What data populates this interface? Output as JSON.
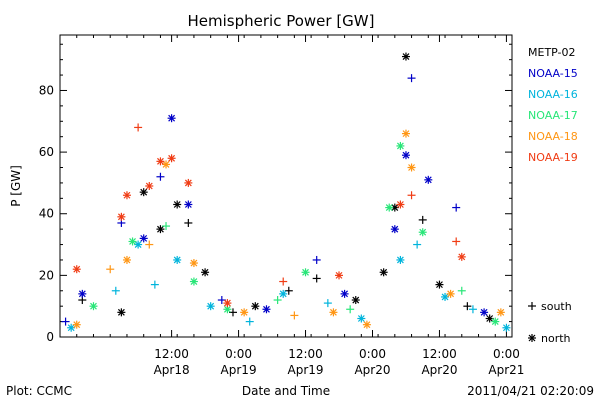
{
  "chart_data": {
    "type": "scatter",
    "title": "Hemispheric Power [GW]",
    "xlabel": "Date and Time",
    "ylabel": "P [GW]",
    "xlim": [
      "2011-04-17T16:00",
      "2011-04-21T01:00"
    ],
    "ylim": [
      0,
      98
    ],
    "y_ticks": [
      0,
      20,
      40,
      60,
      80
    ],
    "x_ticks": [
      {
        "t": "2011-04-18T12:00",
        "time": "12:00",
        "date": "Apr18"
      },
      {
        "t": "2011-04-19T00:00",
        "time": "0:00",
        "date": "Apr19"
      },
      {
        "t": "2011-04-19T12:00",
        "time": "12:00",
        "date": "Apr19"
      },
      {
        "t": "2011-04-20T00:00",
        "time": "0:00",
        "date": "Apr20"
      },
      {
        "t": "2011-04-20T12:00",
        "time": "12:00",
        "date": "Apr20"
      },
      {
        "t": "2011-04-21T00:00",
        "time": "0:00",
        "date": "Apr21"
      }
    ],
    "grid": false,
    "legend_position": "right",
    "marker_legend": {
      "south": "south",
      "north": "north"
    },
    "series": [
      {
        "name": "METP-02",
        "color": "#000000",
        "points": [
          {
            "t": "2011-04-17T20:00",
            "v": 12,
            "h": "south"
          },
          {
            "t": "2011-04-18T03:00",
            "v": 8,
            "h": "north"
          },
          {
            "t": "2011-04-18T07:00",
            "v": 47,
            "h": "north"
          },
          {
            "t": "2011-04-18T10:00",
            "v": 35,
            "h": "north"
          },
          {
            "t": "2011-04-18T13:00",
            "v": 43,
            "h": "north"
          },
          {
            "t": "2011-04-18T15:00",
            "v": 37,
            "h": "south"
          },
          {
            "t": "2011-04-18T18:00",
            "v": 21,
            "h": "north"
          },
          {
            "t": "2011-04-18T23:00",
            "v": 8,
            "h": "south"
          },
          {
            "t": "2011-04-19T03:00",
            "v": 10,
            "h": "north"
          },
          {
            "t": "2011-04-19T09:00",
            "v": 15,
            "h": "south"
          },
          {
            "t": "2011-04-19T14:00",
            "v": 19,
            "h": "south"
          },
          {
            "t": "2011-04-19T21:00",
            "v": 12,
            "h": "north"
          },
          {
            "t": "2011-04-20T02:00",
            "v": 21,
            "h": "north"
          },
          {
            "t": "2011-04-20T04:00",
            "v": 42,
            "h": "north"
          },
          {
            "t": "2011-04-20T06:00",
            "v": 91,
            "h": "north"
          },
          {
            "t": "2011-04-20T09:00",
            "v": 38,
            "h": "south"
          },
          {
            "t": "2011-04-20T12:00",
            "v": 17,
            "h": "north"
          },
          {
            "t": "2011-04-20T17:00",
            "v": 10,
            "h": "south"
          },
          {
            "t": "2011-04-20T21:00",
            "v": 6,
            "h": "north"
          }
        ]
      },
      {
        "name": "NOAA-15",
        "color": "#0000c8",
        "points": [
          {
            "t": "2011-04-17T17:00",
            "v": 5,
            "h": "south"
          },
          {
            "t": "2011-04-17T20:00",
            "v": 14,
            "h": "north"
          },
          {
            "t": "2011-04-18T03:00",
            "v": 37,
            "h": "south"
          },
          {
            "t": "2011-04-18T07:00",
            "v": 32,
            "h": "north"
          },
          {
            "t": "2011-04-18T10:00",
            "v": 52,
            "h": "south"
          },
          {
            "t": "2011-04-18T12:00",
            "v": 71,
            "h": "north"
          },
          {
            "t": "2011-04-18T15:00",
            "v": 43,
            "h": "north"
          },
          {
            "t": "2011-04-18T21:00",
            "v": 12,
            "h": "south"
          },
          {
            "t": "2011-04-19T05:00",
            "v": 9,
            "h": "north"
          },
          {
            "t": "2011-04-19T14:00",
            "v": 25,
            "h": "south"
          },
          {
            "t": "2011-04-19T19:00",
            "v": 14,
            "h": "north"
          },
          {
            "t": "2011-04-20T04:00",
            "v": 35,
            "h": "north"
          },
          {
            "t": "2011-04-20T06:00",
            "v": 59,
            "h": "north"
          },
          {
            "t": "2011-04-20T07:00",
            "v": 84,
            "h": "south"
          },
          {
            "t": "2011-04-20T10:00",
            "v": 51,
            "h": "north"
          },
          {
            "t": "2011-04-20T15:00",
            "v": 42,
            "h": "south"
          },
          {
            "t": "2011-04-20T20:00",
            "v": 8,
            "h": "north"
          }
        ]
      },
      {
        "name": "NOAA-16",
        "color": "#00b4dc",
        "points": [
          {
            "t": "2011-04-17T18:00",
            "v": 3,
            "h": "north"
          },
          {
            "t": "2011-04-18T02:00",
            "v": 15,
            "h": "south"
          },
          {
            "t": "2011-04-18T06:00",
            "v": 30,
            "h": "north"
          },
          {
            "t": "2011-04-18T09:00",
            "v": 17,
            "h": "south"
          },
          {
            "t": "2011-04-18T13:00",
            "v": 25,
            "h": "north"
          },
          {
            "t": "2011-04-18T19:00",
            "v": 10,
            "h": "north"
          },
          {
            "t": "2011-04-19T02:00",
            "v": 5,
            "h": "south"
          },
          {
            "t": "2011-04-19T08:00",
            "v": 14,
            "h": "north"
          },
          {
            "t": "2011-04-19T16:00",
            "v": 11,
            "h": "south"
          },
          {
            "t": "2011-04-19T22:00",
            "v": 6,
            "h": "north"
          },
          {
            "t": "2011-04-20T05:00",
            "v": 25,
            "h": "north"
          },
          {
            "t": "2011-04-20T08:00",
            "v": 30,
            "h": "south"
          },
          {
            "t": "2011-04-20T13:00",
            "v": 13,
            "h": "north"
          },
          {
            "t": "2011-04-20T18:00",
            "v": 9,
            "h": "south"
          },
          {
            "t": "2011-04-21T00:00",
            "v": 3,
            "h": "north"
          }
        ]
      },
      {
        "name": "NOAA-17",
        "color": "#28e678",
        "points": [
          {
            "t": "2011-04-17T22:00",
            "v": 10,
            "h": "north"
          },
          {
            "t": "2011-04-18T05:00",
            "v": 31,
            "h": "north"
          },
          {
            "t": "2011-04-18T11:00",
            "v": 36,
            "h": "south"
          },
          {
            "t": "2011-04-18T16:00",
            "v": 18,
            "h": "north"
          },
          {
            "t": "2011-04-18T22:00",
            "v": 9,
            "h": "north"
          },
          {
            "t": "2011-04-19T07:00",
            "v": 12,
            "h": "south"
          },
          {
            "t": "2011-04-19T12:00",
            "v": 21,
            "h": "north"
          },
          {
            "t": "2011-04-19T20:00",
            "v": 9,
            "h": "south"
          },
          {
            "t": "2011-04-20T03:00",
            "v": 42,
            "h": "north"
          },
          {
            "t": "2011-04-20T05:00",
            "v": 62,
            "h": "north"
          },
          {
            "t": "2011-04-20T09:00",
            "v": 34,
            "h": "north"
          },
          {
            "t": "2011-04-20T16:00",
            "v": 15,
            "h": "south"
          },
          {
            "t": "2011-04-20T22:00",
            "v": 5,
            "h": "north"
          }
        ]
      },
      {
        "name": "NOAA-18",
        "color": "#ff9614",
        "points": [
          {
            "t": "2011-04-17T19:00",
            "v": 4,
            "h": "north"
          },
          {
            "t": "2011-04-18T01:00",
            "v": 22,
            "h": "south"
          },
          {
            "t": "2011-04-18T04:00",
            "v": 25,
            "h": "north"
          },
          {
            "t": "2011-04-18T08:00",
            "v": 30,
            "h": "south"
          },
          {
            "t": "2011-04-18T11:00",
            "v": 56,
            "h": "north"
          },
          {
            "t": "2011-04-18T16:00",
            "v": 24,
            "h": "north"
          },
          {
            "t": "2011-04-19T01:00",
            "v": 8,
            "h": "north"
          },
          {
            "t": "2011-04-19T10:00",
            "v": 7,
            "h": "south"
          },
          {
            "t": "2011-04-19T17:00",
            "v": 8,
            "h": "north"
          },
          {
            "t": "2011-04-19T23:00",
            "v": 4,
            "h": "north"
          },
          {
            "t": "2011-04-20T06:00",
            "v": 66,
            "h": "north"
          },
          {
            "t": "2011-04-20T07:00",
            "v": 55,
            "h": "north"
          },
          {
            "t": "2011-04-20T14:00",
            "v": 14,
            "h": "north"
          },
          {
            "t": "2011-04-20T23:00",
            "v": 8,
            "h": "north"
          }
        ]
      },
      {
        "name": "NOAA-19",
        "color": "#f03c14",
        "points": [
          {
            "t": "2011-04-17T19:00",
            "v": 22,
            "h": "north"
          },
          {
            "t": "2011-04-18T03:00",
            "v": 39,
            "h": "north"
          },
          {
            "t": "2011-04-18T04:00",
            "v": 46,
            "h": "north"
          },
          {
            "t": "2011-04-18T06:00",
            "v": 68,
            "h": "south"
          },
          {
            "t": "2011-04-18T08:00",
            "v": 49,
            "h": "north"
          },
          {
            "t": "2011-04-18T10:00",
            "v": 57,
            "h": "north"
          },
          {
            "t": "2011-04-18T12:00",
            "v": 58,
            "h": "north"
          },
          {
            "t": "2011-04-18T15:00",
            "v": 50,
            "h": "north"
          },
          {
            "t": "2011-04-18T22:00",
            "v": 11,
            "h": "north"
          },
          {
            "t": "2011-04-19T08:00",
            "v": 18,
            "h": "south"
          },
          {
            "t": "2011-04-19T18:00",
            "v": 20,
            "h": "north"
          },
          {
            "t": "2011-04-20T05:00",
            "v": 43,
            "h": "north"
          },
          {
            "t": "2011-04-20T07:00",
            "v": 46,
            "h": "south"
          },
          {
            "t": "2011-04-20T15:00",
            "v": 31,
            "h": "south"
          },
          {
            "t": "2011-04-20T16:00",
            "v": 26,
            "h": "north"
          }
        ]
      }
    ]
  },
  "footer": {
    "left": "Plot: CCMC",
    "right": "2011/04/21 02:20:09"
  }
}
